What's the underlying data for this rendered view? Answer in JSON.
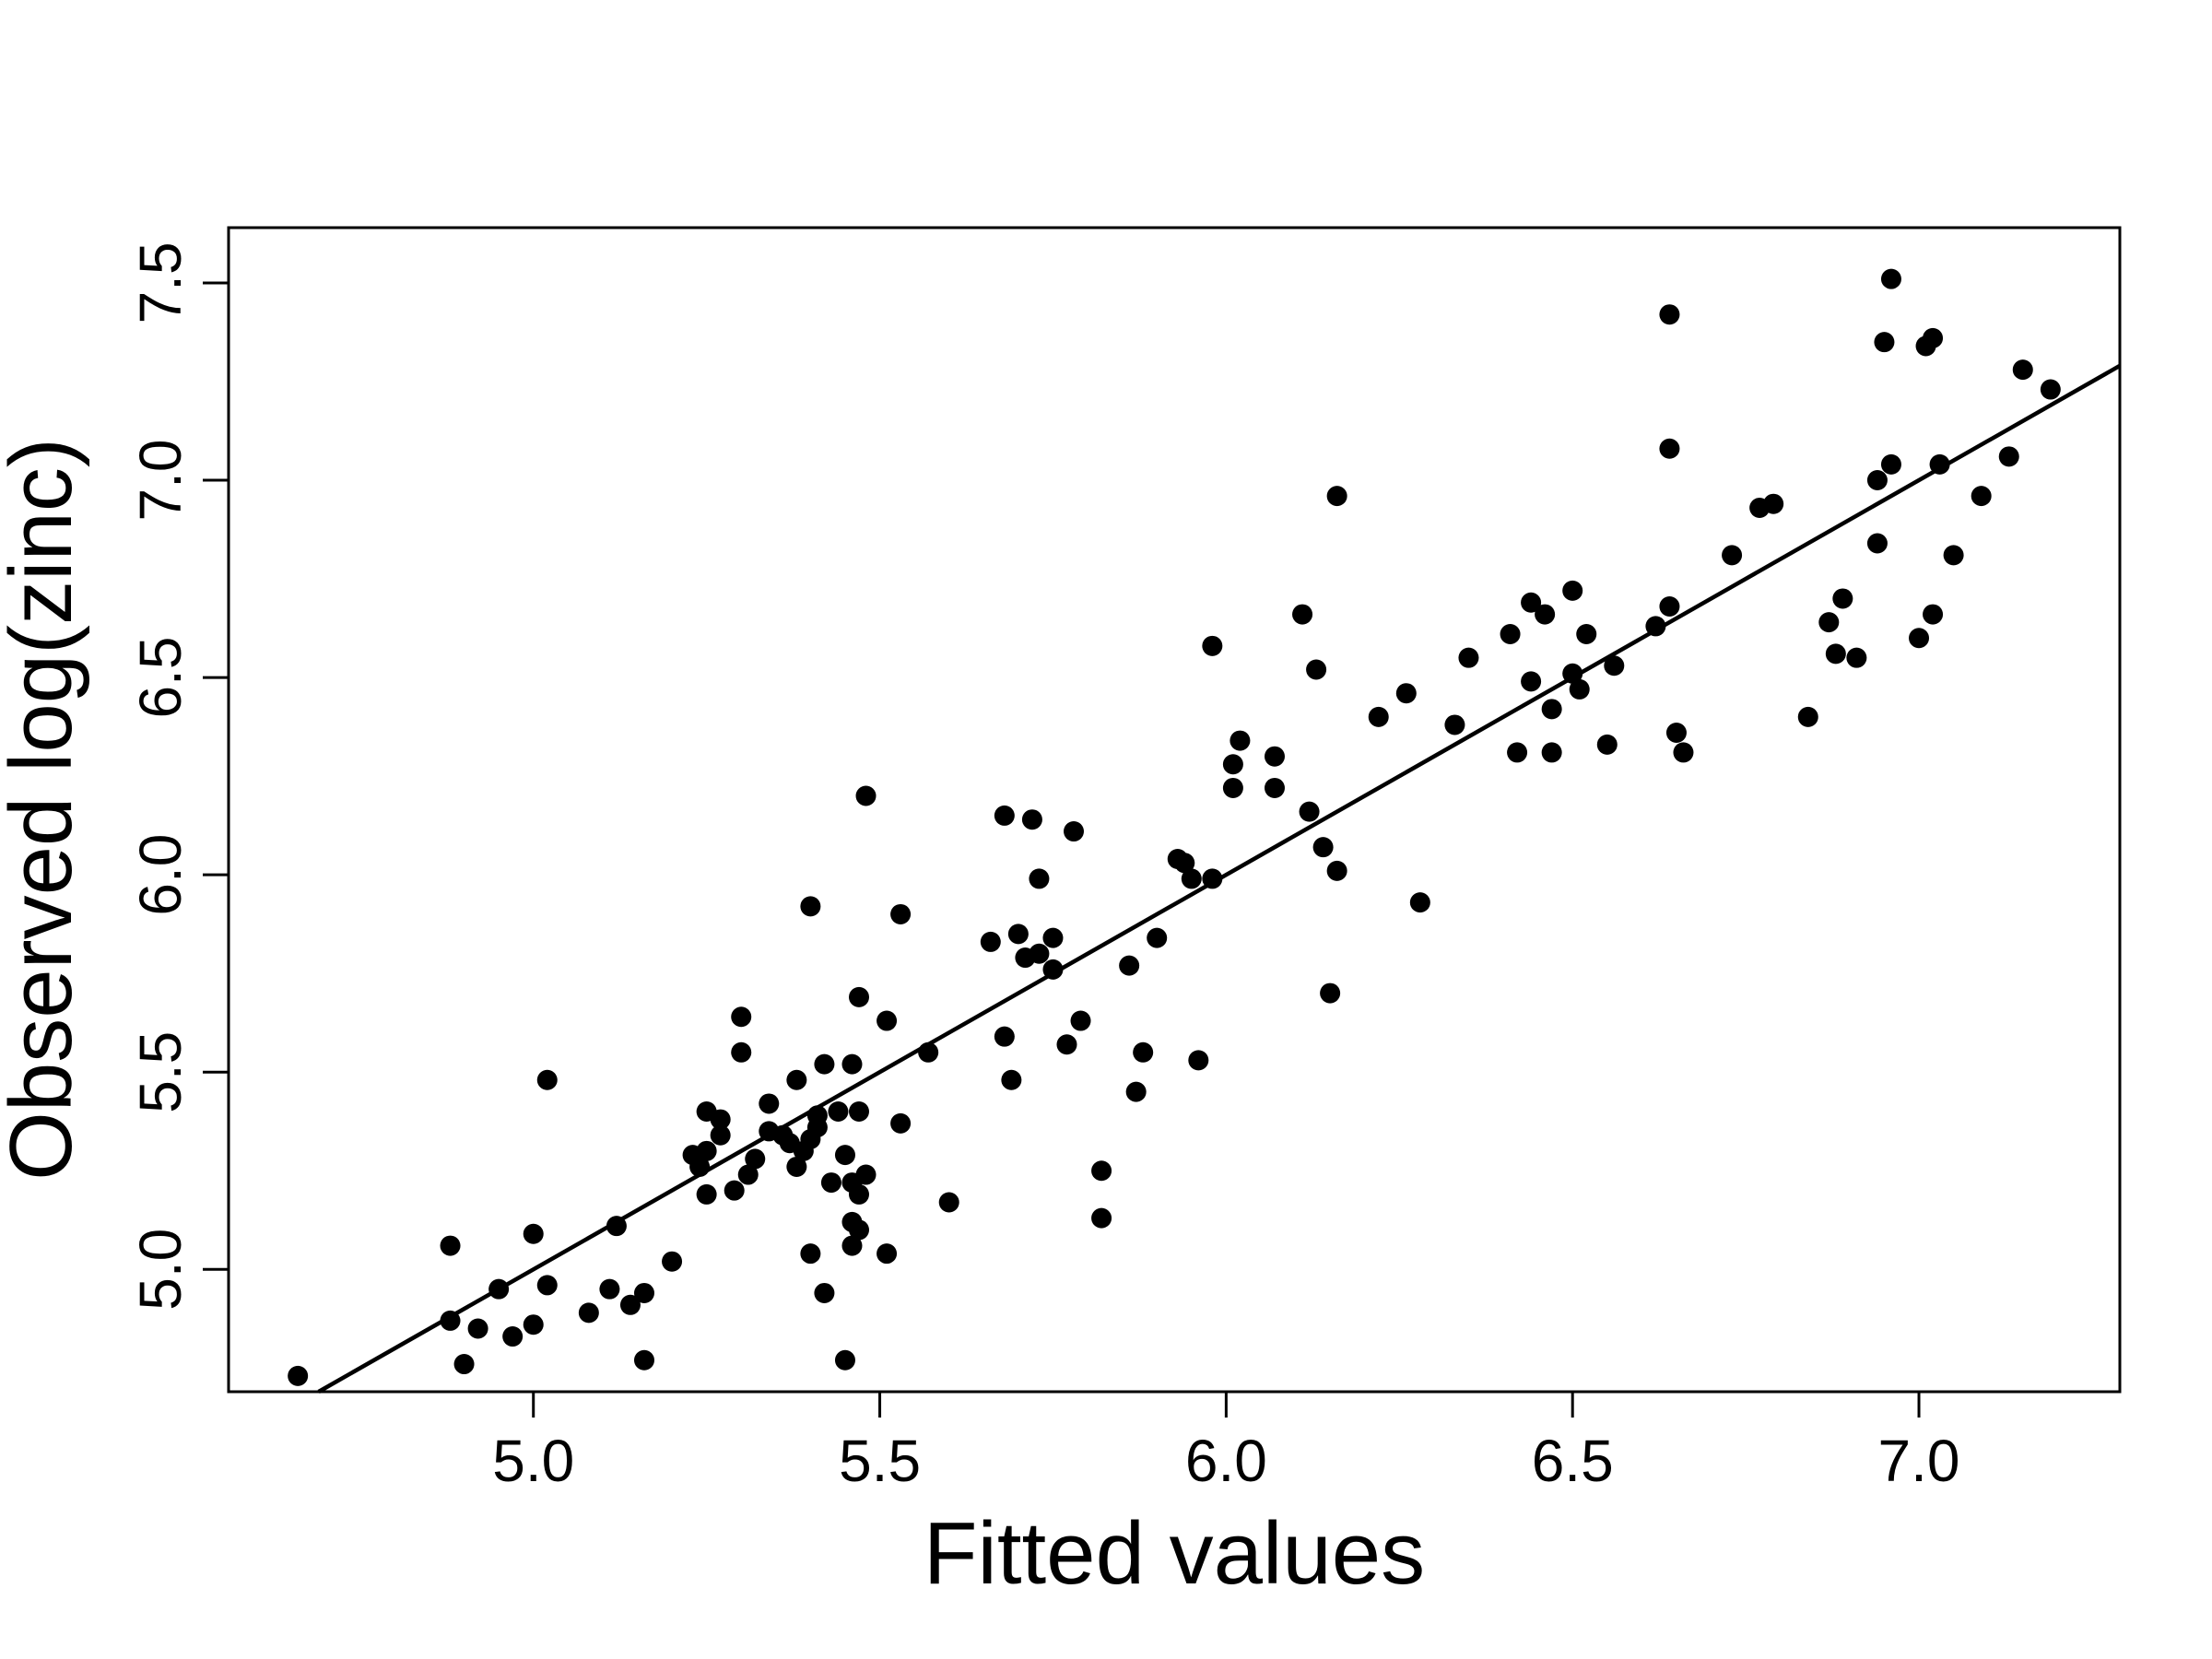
{
  "chart_data": {
    "type": "scatter",
    "title": "",
    "xlabel": "Fitted values",
    "ylabel": "Observed log(zinc)",
    "xlim": [
      4.56,
      7.29
    ],
    "ylim": [
      4.69,
      7.64
    ],
    "xticks": [
      5.0,
      5.5,
      6.0,
      6.5,
      7.0
    ],
    "xtick_labels": [
      "5.0",
      "5.5",
      "6.0",
      "6.5",
      "7.0"
    ],
    "yticks": [
      5.0,
      5.5,
      6.0,
      6.5,
      7.0,
      7.5
    ],
    "ytick_labels": [
      "5.0",
      "5.5",
      "6.0",
      "6.5",
      "7.0",
      "7.5"
    ],
    "grid": false,
    "reference_line": {
      "type": "identity",
      "intercept": 0,
      "slope": 1
    },
    "colors": {
      "points": "#000000",
      "line": "#000000",
      "axes": "#000000"
    },
    "points": [
      [
        4.66,
        4.73
      ],
      [
        4.88,
        4.87
      ],
      [
        4.88,
        5.06
      ],
      [
        4.9,
        4.76
      ],
      [
        4.92,
        4.85
      ],
      [
        4.95,
        4.95
      ],
      [
        4.97,
        4.83
      ],
      [
        5.0,
        4.86
      ],
      [
        5.0,
        5.09
      ],
      [
        5.02,
        4.96
      ],
      [
        5.02,
        5.48
      ],
      [
        5.08,
        4.89
      ],
      [
        5.11,
        4.95
      ],
      [
        5.12,
        5.11
      ],
      [
        5.14,
        4.91
      ],
      [
        5.16,
        4.94
      ],
      [
        5.16,
        4.77
      ],
      [
        5.2,
        5.02
      ],
      [
        5.23,
        5.29
      ],
      [
        5.24,
        5.26
      ],
      [
        5.25,
        5.3
      ],
      [
        5.25,
        5.4
      ],
      [
        5.25,
        5.19
      ],
      [
        5.27,
        5.38
      ],
      [
        5.27,
        5.34
      ],
      [
        5.29,
        5.2
      ],
      [
        5.3,
        5.55
      ],
      [
        5.3,
        5.64
      ],
      [
        5.31,
        5.24
      ],
      [
        5.32,
        5.28
      ],
      [
        5.34,
        5.42
      ],
      [
        5.34,
        5.35
      ],
      [
        5.36,
        5.34
      ],
      [
        5.37,
        5.32
      ],
      [
        5.38,
        5.48
      ],
      [
        5.38,
        5.26
      ],
      [
        5.39,
        5.3
      ],
      [
        5.4,
        5.33
      ],
      [
        5.4,
        5.04
      ],
      [
        5.4,
        5.92
      ],
      [
        5.41,
        5.39
      ],
      [
        5.41,
        5.36
      ],
      [
        5.42,
        5.52
      ],
      [
        5.42,
        4.94
      ],
      [
        5.43,
        5.22
      ],
      [
        5.44,
        5.4
      ],
      [
        5.45,
        5.29
      ],
      [
        5.45,
        4.77
      ],
      [
        5.46,
        5.06
      ],
      [
        5.46,
        5.12
      ],
      [
        5.46,
        5.52
      ],
      [
        5.46,
        5.22
      ],
      [
        5.47,
        5.4
      ],
      [
        5.47,
        5.19
      ],
      [
        5.47,
        5.1
      ],
      [
        5.47,
        5.69
      ],
      [
        5.48,
        5.24
      ],
      [
        5.48,
        6.2
      ],
      [
        5.51,
        5.63
      ],
      [
        5.51,
        5.04
      ],
      [
        5.53,
        5.37
      ],
      [
        5.53,
        5.9
      ],
      [
        5.57,
        5.55
      ],
      [
        5.6,
        5.17
      ],
      [
        5.66,
        5.83
      ],
      [
        5.68,
        5.59
      ],
      [
        5.68,
        6.15
      ],
      [
        5.69,
        5.48
      ],
      [
        5.7,
        5.85
      ],
      [
        5.71,
        5.79
      ],
      [
        5.72,
        6.14
      ],
      [
        5.73,
        5.8
      ],
      [
        5.73,
        5.99
      ],
      [
        5.75,
        5.84
      ],
      [
        5.75,
        5.76
      ],
      [
        5.77,
        5.57
      ],
      [
        5.78,
        6.11
      ],
      [
        5.79,
        5.63
      ],
      [
        5.82,
        5.25
      ],
      [
        5.82,
        5.13
      ],
      [
        5.86,
        5.77
      ],
      [
        5.87,
        5.45
      ],
      [
        5.88,
        5.55
      ],
      [
        5.9,
        5.84
      ],
      [
        5.93,
        6.04
      ],
      [
        5.94,
        6.03
      ],
      [
        5.95,
        5.99
      ],
      [
        5.96,
        5.53
      ],
      [
        5.98,
        6.58
      ],
      [
        5.98,
        5.99
      ],
      [
        6.01,
        6.22
      ],
      [
        6.01,
        6.28
      ],
      [
        6.02,
        6.34
      ],
      [
        6.07,
        6.3
      ],
      [
        6.07,
        6.22
      ],
      [
        6.11,
        6.66
      ],
      [
        6.12,
        6.16
      ],
      [
        6.13,
        6.52
      ],
      [
        6.14,
        6.07
      ],
      [
        6.15,
        5.7
      ],
      [
        6.16,
        6.01
      ],
      [
        6.16,
        6.96
      ],
      [
        6.22,
        6.4
      ],
      [
        6.26,
        6.46
      ],
      [
        6.28,
        5.93
      ],
      [
        6.33,
        6.38
      ],
      [
        6.35,
        6.55
      ],
      [
        6.41,
        6.61
      ],
      [
        6.42,
        6.31
      ],
      [
        6.44,
        6.69
      ],
      [
        6.44,
        6.49
      ],
      [
        6.46,
        6.66
      ],
      [
        6.47,
        6.42
      ],
      [
        6.47,
        6.31
      ],
      [
        6.5,
        6.72
      ],
      [
        6.5,
        6.51
      ],
      [
        6.51,
        6.47
      ],
      [
        6.52,
        6.61
      ],
      [
        6.55,
        6.33
      ],
      [
        6.56,
        6.53
      ],
      [
        6.62,
        6.63
      ],
      [
        6.64,
        7.42
      ],
      [
        6.64,
        7.08
      ],
      [
        6.64,
        6.68
      ],
      [
        6.65,
        6.36
      ],
      [
        6.66,
        6.31
      ],
      [
        6.73,
        6.81
      ],
      [
        6.77,
        6.93
      ],
      [
        6.79,
        6.94
      ],
      [
        6.84,
        6.4
      ],
      [
        6.87,
        6.64
      ],
      [
        6.88,
        6.56
      ],
      [
        6.89,
        6.7
      ],
      [
        6.91,
        6.55
      ],
      [
        6.94,
        7.0
      ],
      [
        6.94,
        6.84
      ],
      [
        6.95,
        7.35
      ],
      [
        6.96,
        7.51
      ],
      [
        6.96,
        7.04
      ],
      [
        7.0,
        6.6
      ],
      [
        7.01,
        7.34
      ],
      [
        7.02,
        7.36
      ],
      [
        7.02,
        6.66
      ],
      [
        7.03,
        7.04
      ],
      [
        7.05,
        6.81
      ],
      [
        7.09,
        6.96
      ],
      [
        7.13,
        7.06
      ],
      [
        7.15,
        7.28
      ],
      [
        7.19,
        7.23
      ]
    ]
  }
}
